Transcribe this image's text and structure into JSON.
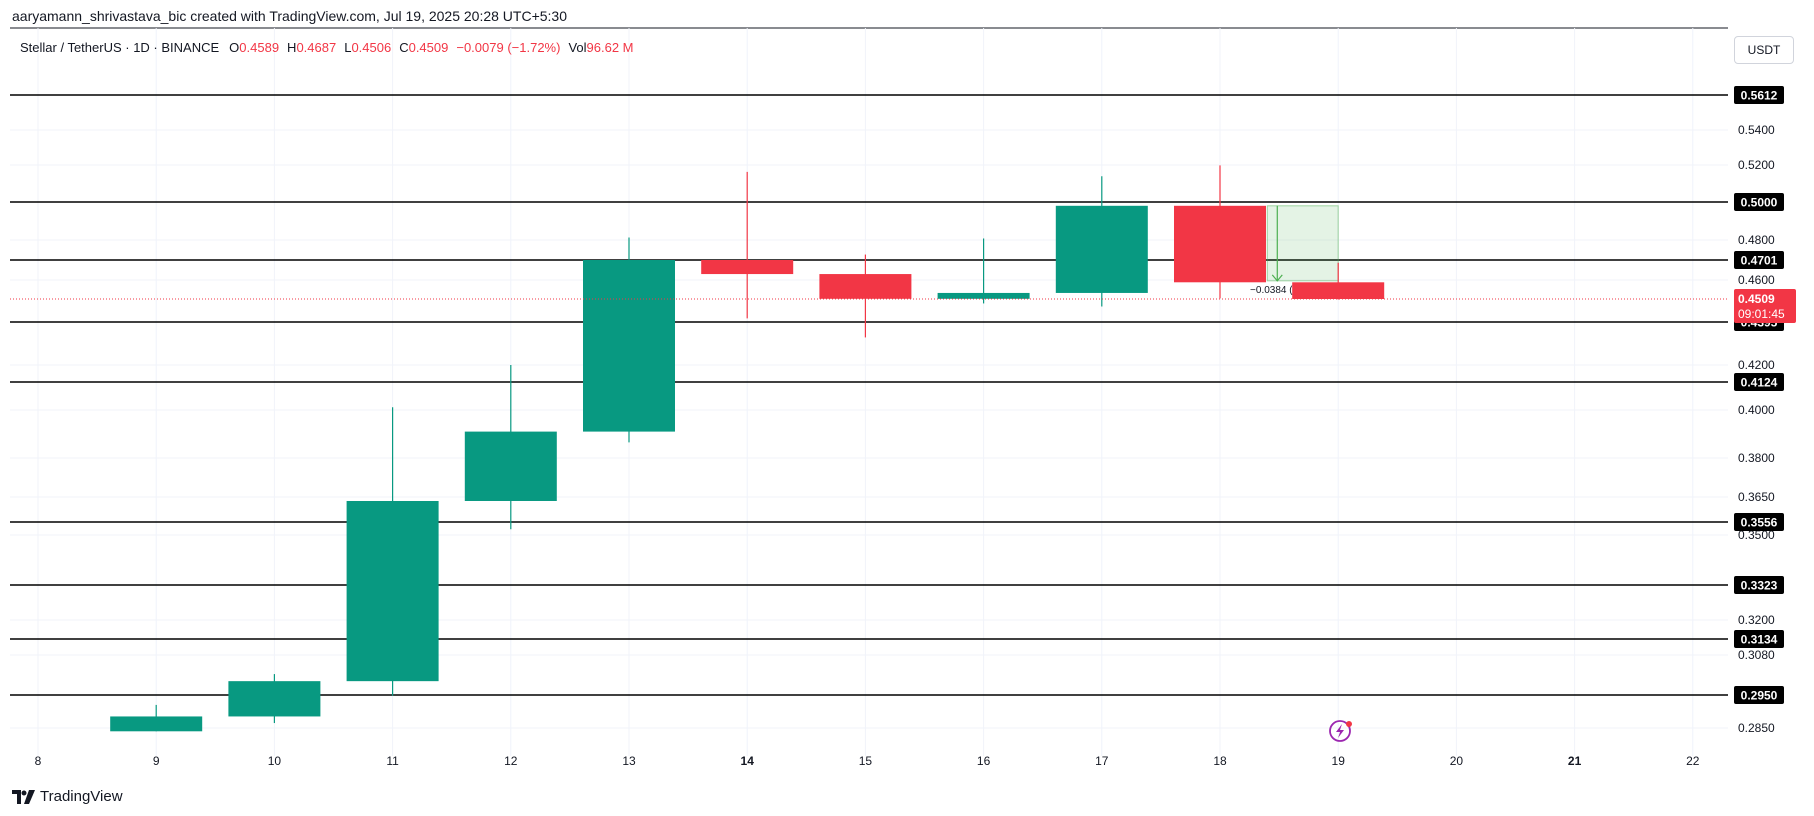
{
  "credit": "aaryamann_shrivastava_bic created with TradingView.com, Jul 19, 2025 20:28 UTC+5:30",
  "legend": {
    "symbol": "Stellar / TetherUS · 1D · BINANCE",
    "o_label": "O",
    "o_value": "0.4589",
    "h_label": "H",
    "h_value": "0.4687",
    "l_label": "L",
    "l_value": "0.4506",
    "c_label": "C",
    "c_value": "0.4509",
    "change": "−0.0079 (−1.72%)",
    "vol_label": "Vol",
    "vol_value": "96.62 M"
  },
  "currency": "USDT",
  "brand": "TradingView",
  "colors": {
    "up": "#089981",
    "down": "#f23645",
    "level": "#000000",
    "grid": "#f0f3fa",
    "measure": "#4caf50"
  },
  "chart_data": {
    "type": "candlestick",
    "x_ticks": [
      {
        "label": "8",
        "x": 8,
        "bold": false
      },
      {
        "label": "9",
        "x": 9,
        "bold": false
      },
      {
        "label": "10",
        "x": 10,
        "bold": false
      },
      {
        "label": "11",
        "x": 11,
        "bold": false
      },
      {
        "label": "12",
        "x": 12,
        "bold": false
      },
      {
        "label": "13",
        "x": 13,
        "bold": false
      },
      {
        "label": "14",
        "x": 14,
        "bold": true
      },
      {
        "label": "15",
        "x": 15,
        "bold": false
      },
      {
        "label": "16",
        "x": 16,
        "bold": false
      },
      {
        "label": "17",
        "x": 17,
        "bold": false
      },
      {
        "label": "18",
        "x": 18,
        "bold": false
      },
      {
        "label": "19",
        "x": 19,
        "bold": false
      },
      {
        "label": "20",
        "x": 20,
        "bold": false
      },
      {
        "label": "21",
        "x": 21,
        "bold": true
      },
      {
        "label": "22",
        "x": 22,
        "bold": false
      }
    ],
    "y_ticks": [
      "0.5400",
      "0.5200",
      "0.4800",
      "0.4600",
      "0.4200",
      "0.4000",
      "0.3800",
      "0.3650",
      "0.3500",
      "0.3200",
      "0.3080",
      "0.2850"
    ],
    "candles": [
      {
        "x": 9,
        "open": 0.284,
        "high": 0.292,
        "low": 0.284,
        "close": 0.2885
      },
      {
        "x": 10,
        "open": 0.2885,
        "high": 0.3018,
        "low": 0.2865,
        "close": 0.2995
      },
      {
        "x": 11,
        "open": 0.2995,
        "high": 0.4012,
        "low": 0.2948,
        "close": 0.3635
      },
      {
        "x": 12,
        "open": 0.3635,
        "high": 0.42,
        "low": 0.3525,
        "close": 0.391
      },
      {
        "x": 13,
        "open": 0.391,
        "high": 0.4813,
        "low": 0.3865,
        "close": 0.4701
      },
      {
        "x": 14,
        "open": 0.4701,
        "high": 0.5163,
        "low": 0.4413,
        "close": 0.463
      },
      {
        "x": 15,
        "open": 0.463,
        "high": 0.4728,
        "low": 0.4325,
        "close": 0.451
      },
      {
        "x": 16,
        "open": 0.451,
        "high": 0.4808,
        "low": 0.4487,
        "close": 0.4538
      },
      {
        "x": 17,
        "open": 0.4538,
        "high": 0.5139,
        "low": 0.4472,
        "close": 0.498
      },
      {
        "x": 18,
        "open": 0.498,
        "high": 0.5198,
        "low": 0.4512,
        "close": 0.4589
      },
      {
        "x": 19,
        "open": 0.4589,
        "high": 0.4687,
        "low": 0.4506,
        "close": 0.4509
      }
    ],
    "levels": [
      "0.5612",
      "0.5000",
      "0.4701",
      "0.4395",
      "0.4124",
      "0.3556",
      "0.3323",
      "0.3134",
      "0.2950"
    ],
    "current_price": {
      "value": "0.4509",
      "countdown": "09:01:45"
    },
    "measure": {
      "from_x": 18.4,
      "to_x": 19.0,
      "from_price": 0.498,
      "to_price": 0.4596,
      "label": "−0.0384 (−7.72%) −384"
    }
  }
}
